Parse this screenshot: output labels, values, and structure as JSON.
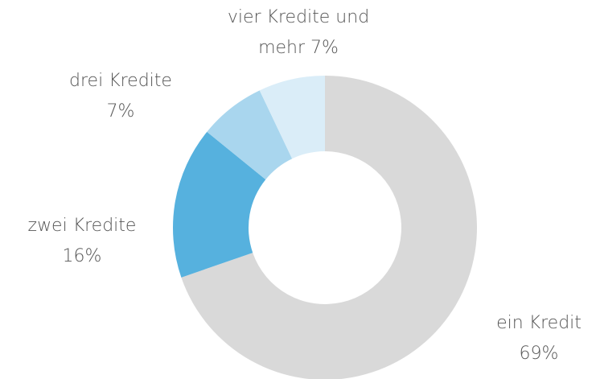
{
  "chart_data": {
    "type": "donut",
    "categories": [
      "ein Kredit",
      "zwei Kredite",
      "drei Kredite",
      "vier Kredite und mehr"
    ],
    "values": [
      69,
      16,
      7,
      7
    ],
    "value_labels": [
      "69%",
      "16%",
      "7%",
      "7%"
    ],
    "colors": [
      "#d9d9d9",
      "#56b1de",
      "#a9d6ee",
      "#daedf8"
    ]
  }
}
